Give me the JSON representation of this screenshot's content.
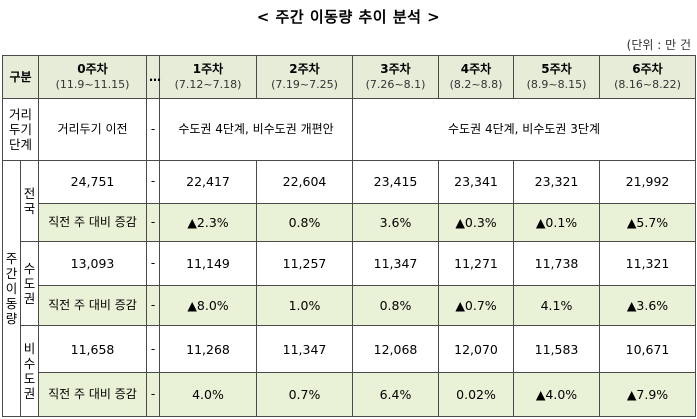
{
  "title": "< 주간 이동량 추이 분석 >",
  "unit": "(단위 : 만 건",
  "header": {
    "label": "구분",
    "week0": {
      "name": "0주차",
      "range": "(11.9~11.15)"
    },
    "gap": "…",
    "weeks": [
      {
        "name": "1주차",
        "range": "(7.12~7.18)"
      },
      {
        "name": "2주차",
        "range": "(7.19~7.25)"
      },
      {
        "name": "3주차",
        "range": "(7.26~8.1)"
      },
      {
        "name": "4주차",
        "range": "(8.2~8.8)"
      },
      {
        "name": "5주차",
        "range": "(8.9~8.15)"
      },
      {
        "name": "6주차",
        "range": "(8.16~8.22)"
      }
    ]
  },
  "distancing": {
    "label": "거리두기단계",
    "week0": "거리두기 이전",
    "gap": "-",
    "weeks12": "수도권 4단계, 비수도권 개편안",
    "weeks36": "수도권 4단계, 비수도권 3단계"
  },
  "group_label": "주간이동량",
  "regions": [
    {
      "name": "전국",
      "values": {
        "week0": "24,751",
        "gap": "-",
        "weeks": [
          "22,417",
          "22,604",
          "23,415",
          "23,341",
          "23,321",
          "21,992"
        ]
      },
      "change_label": "직전 주 대비 증감",
      "changes": {
        "week0": "-",
        "gap": "-",
        "weeks": [
          "▲2.3%",
          "0.8%",
          "3.6%",
          "▲0.3%",
          "▲0.1%",
          "▲5.7%"
        ]
      }
    },
    {
      "name": "수도권",
      "values": {
        "week0": "13,093",
        "gap": "-",
        "weeks": [
          "11,149",
          "11,257",
          "11,347",
          "11,271",
          "11,738",
          "11,321"
        ]
      },
      "change_label": "직전 주 대비 증감",
      "changes": {
        "week0": "-",
        "gap": "-",
        "weeks": [
          "▲8.0%",
          "1.0%",
          "0.8%",
          "▲0.7%",
          "4.1%",
          "▲3.6%"
        ]
      }
    },
    {
      "name": "비수도권",
      "values": {
        "week0": "11,658",
        "gap": "-",
        "weeks": [
          "11,268",
          "11,347",
          "12,068",
          "12,070",
          "11,583",
          "10,671"
        ]
      },
      "change_label": "직전 주 대비 증감",
      "changes": {
        "week0": "-",
        "gap": "-",
        "weeks": [
          "4.0%",
          "0.7%",
          "6.4%",
          "0.02%",
          "▲4.0%",
          "▲7.9%"
        ]
      }
    }
  ]
}
